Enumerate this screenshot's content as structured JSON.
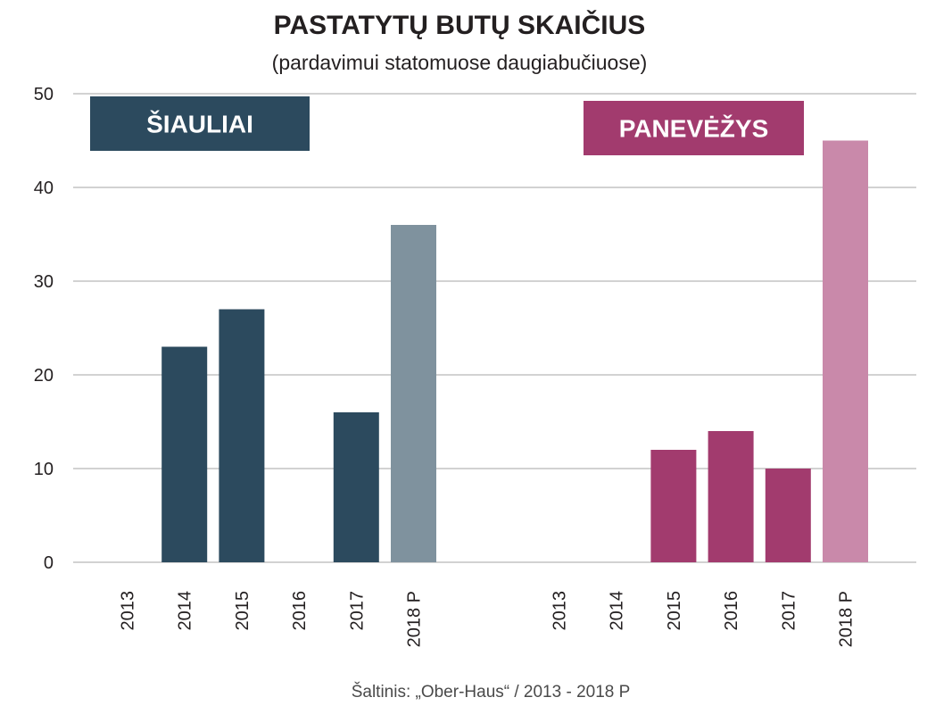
{
  "title": "PASTATYTŲ BUTŲ SKAIČIUS",
  "subtitle": "(pardavimui statomuose daugiabučiuose)",
  "source": "Šaltinis: „Ober-Haus“ / 2013 - 2018 P",
  "colors": {
    "siauliai": "#2c4a5e",
    "siauliai_forecast": "#7f929e",
    "panevezys": "#a23b6e",
    "panevezys_forecast": "#c989aa",
    "grid": "#d2d2d2"
  },
  "chart_data": {
    "type": "bar",
    "ylim": [
      0,
      50
    ],
    "yticks": [
      0,
      10,
      20,
      30,
      40,
      50
    ],
    "grid": true,
    "groups": [
      {
        "name": "ŠIAULIAI",
        "color": "#2c4a5e",
        "forecast_color": "#7f929e",
        "categories": [
          "2013",
          "2014",
          "2015",
          "2016",
          "2017",
          "2018 P"
        ],
        "values": [
          0,
          23,
          27,
          0,
          16,
          36
        ]
      },
      {
        "name": "PANEVĖŽYS",
        "color": "#a23b6e",
        "forecast_color": "#c989aa",
        "categories": [
          "2013",
          "2014",
          "2015",
          "2016",
          "2017",
          "2018 P"
        ],
        "values": [
          0,
          0,
          12,
          14,
          10,
          45
        ]
      }
    ]
  }
}
